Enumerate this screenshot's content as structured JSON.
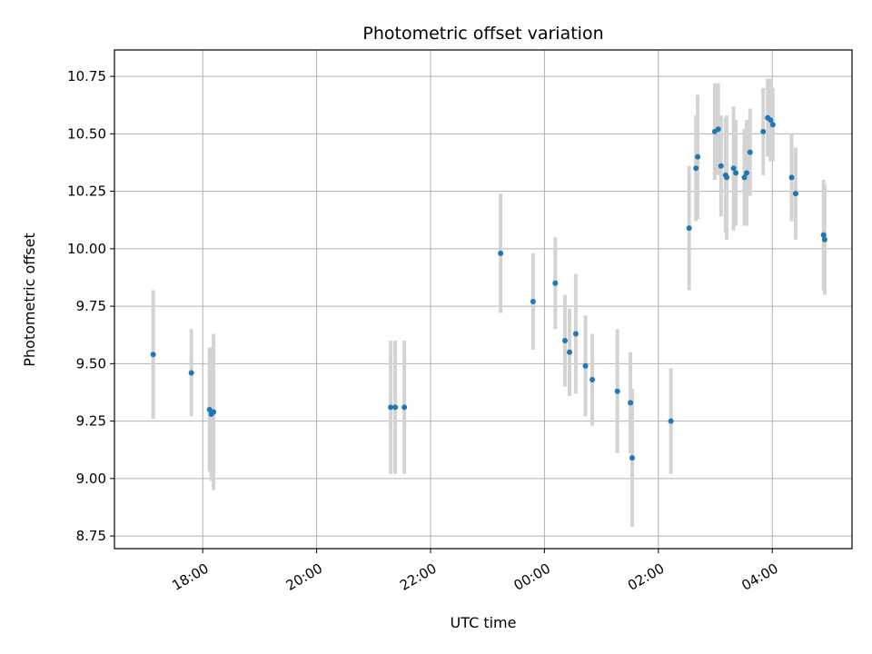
{
  "chart_data": {
    "type": "scatter",
    "title": "Photometric offset variation",
    "xlabel": "UTC time",
    "ylabel": "Photometric offset",
    "x_unit": "hours since 00:00 UTC (negative = previous day)",
    "xlim": [
      -7.55,
      5.4
    ],
    "ylim": [
      8.695,
      10.865
    ],
    "grid": true,
    "x_ticks": [
      {
        "value": -6,
        "label": "18:00"
      },
      {
        "value": -4,
        "label": "20:00"
      },
      {
        "value": -2,
        "label": "22:00"
      },
      {
        "value": 0,
        "label": "00:00"
      },
      {
        "value": 2,
        "label": "02:00"
      },
      {
        "value": 4,
        "label": "04:00"
      }
    ],
    "y_ticks": [
      {
        "value": 8.75,
        "label": "8.75"
      },
      {
        "value": 9.0,
        "label": "9.00"
      },
      {
        "value": 9.25,
        "label": "9.25"
      },
      {
        "value": 9.5,
        "label": "9.50"
      },
      {
        "value": 9.75,
        "label": "9.75"
      },
      {
        "value": 10.0,
        "label": "10.00"
      },
      {
        "value": 10.25,
        "label": "10.25"
      },
      {
        "value": 10.5,
        "label": "10.50"
      },
      {
        "value": 10.75,
        "label": "10.75"
      }
    ],
    "marker_color": "#1f77b4",
    "errorbar_color": "#d3d3d3",
    "points": [
      {
        "x": -6.87,
        "y": 9.54,
        "err": 0.28
      },
      {
        "x": -6.2,
        "y": 9.46,
        "err": 0.19
      },
      {
        "x": -5.88,
        "y": 9.3,
        "err": 0.27
      },
      {
        "x": -5.85,
        "y": 9.28,
        "err": 0.29
      },
      {
        "x": -5.81,
        "y": 9.29,
        "err": 0.34
      },
      {
        "x": -2.7,
        "y": 9.31,
        "err": 0.29
      },
      {
        "x": -2.62,
        "y": 9.31,
        "err": 0.29
      },
      {
        "x": -2.46,
        "y": 9.31,
        "err": 0.29
      },
      {
        "x": -0.77,
        "y": 9.98,
        "err": 0.26
      },
      {
        "x": -0.2,
        "y": 9.77,
        "err": 0.21
      },
      {
        "x": 0.19,
        "y": 9.85,
        "err": 0.2
      },
      {
        "x": 0.36,
        "y": 9.6,
        "err": 0.2
      },
      {
        "x": 0.44,
        "y": 9.55,
        "err": 0.19
      },
      {
        "x": 0.55,
        "y": 9.63,
        "err": 0.26
      },
      {
        "x": 0.72,
        "y": 9.49,
        "err": 0.22
      },
      {
        "x": 0.84,
        "y": 9.43,
        "err": 0.2
      },
      {
        "x": 1.28,
        "y": 9.38,
        "err": 0.27
      },
      {
        "x": 1.51,
        "y": 9.33,
        "err": 0.22
      },
      {
        "x": 1.54,
        "y": 9.09,
        "err": 0.3
      },
      {
        "x": 2.22,
        "y": 9.25,
        "err": 0.23
      },
      {
        "x": 2.54,
        "y": 10.09,
        "err": 0.27
      },
      {
        "x": 2.66,
        "y": 10.35,
        "err": 0.23
      },
      {
        "x": 2.69,
        "y": 10.4,
        "err": 0.27
      },
      {
        "x": 2.99,
        "y": 10.51,
        "err": 0.21
      },
      {
        "x": 3.05,
        "y": 10.52,
        "err": 0.2
      },
      {
        "x": 3.1,
        "y": 10.36,
        "err": 0.22
      },
      {
        "x": 3.18,
        "y": 10.32,
        "err": 0.25
      },
      {
        "x": 3.2,
        "y": 10.31,
        "err": 0.27
      },
      {
        "x": 3.32,
        "y": 10.35,
        "err": 0.27
      },
      {
        "x": 3.36,
        "y": 10.33,
        "err": 0.23
      },
      {
        "x": 3.51,
        "y": 10.31,
        "err": 0.21
      },
      {
        "x": 3.55,
        "y": 10.33,
        "err": 0.23
      },
      {
        "x": 3.61,
        "y": 10.42,
        "err": 0.19
      },
      {
        "x": 3.84,
        "y": 10.51,
        "err": 0.19
      },
      {
        "x": 3.92,
        "y": 10.57,
        "err": 0.17
      },
      {
        "x": 3.97,
        "y": 10.56,
        "err": 0.18
      },
      {
        "x": 4.01,
        "y": 10.54,
        "err": 0.16
      },
      {
        "x": 4.34,
        "y": 10.31,
        "err": 0.19
      },
      {
        "x": 4.41,
        "y": 10.24,
        "err": 0.2
      },
      {
        "x": 4.9,
        "y": 10.06,
        "err": 0.24
      },
      {
        "x": 4.92,
        "y": 10.04,
        "err": 0.24
      }
    ]
  }
}
